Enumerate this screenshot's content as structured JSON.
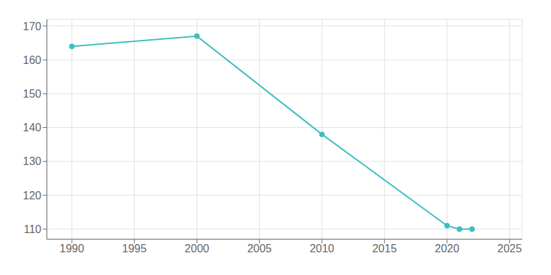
{
  "chart_data": {
    "type": "line",
    "x": [
      1990,
      2000,
      2010,
      2020,
      2021,
      2022
    ],
    "values": [
      164,
      167,
      138,
      111,
      110,
      110
    ],
    "color": "#3dbfbf",
    "marker": "circle",
    "xlim": [
      1988,
      2026
    ],
    "ylim": [
      107,
      172
    ],
    "xticks": [
      1990,
      1995,
      2000,
      2005,
      2010,
      2015,
      2020,
      2025
    ],
    "yticks": [
      110,
      120,
      130,
      140,
      150,
      160,
      170
    ],
    "grid": true
  }
}
